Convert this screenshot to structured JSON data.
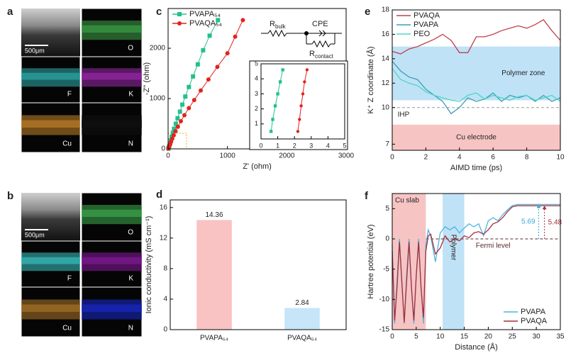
{
  "panel_labels": [
    "a",
    "b",
    "c",
    "d",
    "e",
    "f"
  ],
  "images": [
    {
      "scale_bar": "500μm",
      "elements": [
        "O",
        "F",
        "K",
        "Cu",
        "N"
      ],
      "colors": [
        "#3fa64a",
        "#2fb3b0",
        "#a02ab0",
        "#c8862a",
        "#111111"
      ]
    },
    {
      "scale_bar": "500μm",
      "elements": [
        "O",
        "F",
        "K",
        "Cu",
        "N"
      ],
      "colors": [
        "#3fb050",
        "#3cc8c8",
        "#8a1aa0",
        "#b07a2a",
        "#1a2ad0"
      ]
    }
  ],
  "circuit": {
    "r_bulk": {
      "text": "R",
      "sub": "bulk"
    },
    "cpe": "CPE",
    "r_contact": {
      "text": "R",
      "sub": "contact"
    }
  },
  "chart_data": [
    {
      "type": "line",
      "markers": true,
      "xlabel": "Z' (ohm)",
      "ylabel": "-Z'' (ohm)",
      "xlim": [
        0,
        3000
      ],
      "xticks": [
        0,
        1000,
        2000,
        3000
      ],
      "ylim": [
        0,
        2790
      ],
      "yticks": [
        0,
        1000,
        2000
      ],
      "legend": "top-left",
      "series": [
        {
          "name": "PVAPA₅₄",
          "color": "#23c08b",
          "marker": "square",
          "x": [
            5,
            10,
            20,
            30,
            45,
            60,
            80,
            100,
            130,
            160,
            200,
            240,
            290,
            350,
            420,
            500,
            590,
            700,
            840
          ],
          "values": [
            5,
            25,
            60,
            110,
            170,
            240,
            320,
            400,
            500,
            610,
            740,
            880,
            1040,
            1230,
            1440,
            1680,
            1960,
            2250,
            2560
          ]
        },
        {
          "name": "PVAQA₅₄",
          "color": "#e3221e",
          "marker": "circle",
          "x": [
            5,
            10,
            20,
            35,
            50,
            70,
            95,
            125,
            165,
            215,
            275,
            350,
            440,
            550,
            680,
            830,
            1000,
            1130,
            1260
          ],
          "values": [
            5,
            20,
            50,
            90,
            140,
            200,
            270,
            350,
            440,
            550,
            670,
            810,
            970,
            1160,
            1380,
            1630,
            1900,
            2230,
            2560
          ]
        }
      ]
    },
    {
      "type": "line",
      "markers": true,
      "xlim": [
        0,
        5
      ],
      "xticks": [
        0,
        1,
        2,
        3,
        4,
        5
      ],
      "ylim": [
        0,
        5
      ],
      "yticks": [
        1,
        2,
        3,
        4,
        5
      ],
      "series": [
        {
          "color": "#23c08b",
          "marker": "square",
          "x": [
            0.6,
            0.7,
            0.85,
            1.0,
            1.15,
            1.3
          ],
          "values": [
            0.5,
            1.3,
            2.2,
            3.0,
            3.8,
            4.6
          ]
        },
        {
          "color": "#e3221e",
          "marker": "circle",
          "x": [
            2.2,
            2.3,
            2.4,
            2.5,
            2.6,
            2.75
          ],
          "values": [
            0.5,
            1.3,
            2.2,
            3.0,
            3.8,
            4.6
          ]
        }
      ]
    },
    {
      "type": "bar",
      "ylabel": "Ionic conductivity (mS cm⁻¹)",
      "categories": [
        "PVAPA₅₄",
        "PVAQA₅₄"
      ],
      "values": [
        14.36,
        2.84
      ],
      "colors": [
        "#f9c3c3",
        "#c6e5f8"
      ],
      "ylim": [
        0,
        17
      ],
      "yticks": [
        0,
        4,
        8,
        12,
        16
      ]
    },
    {
      "type": "line",
      "xlabel": "AIMD time (ps)",
      "ylabel": "K⁺ Z coordinate (Å)",
      "xlim": [
        0,
        10
      ],
      "xticks": [
        0,
        2,
        4,
        6,
        8,
        10
      ],
      "ylim": [
        6.5,
        18
      ],
      "yticks": [
        7,
        10,
        12,
        14,
        16,
        18
      ],
      "legend": "top-left",
      "bands": [
        {
          "label": "Polymer zone",
          "y": [
            10.6,
            15
          ],
          "color": "#bfe2f6"
        },
        {
          "label": "Cu electrode",
          "y": [
            6.5,
            8.6
          ],
          "color": "#f7c4c4"
        }
      ],
      "hlines": [
        {
          "label": "IHP",
          "value": 10,
          "color": "#999999"
        }
      ],
      "x": [
        0,
        0.5,
        1,
        1.5,
        2,
        2.5,
        3,
        3.5,
        4,
        4.5,
        5,
        5.5,
        6,
        6.5,
        7,
        7.5,
        8,
        8.5,
        9,
        9.5,
        10
      ],
      "series": [
        {
          "name": "PVAQA",
          "color": "#c0404a",
          "values": [
            14.6,
            14.4,
            14.8,
            15.0,
            15.3,
            15.6,
            16.0,
            15.5,
            14.5,
            14.5,
            15.8,
            15.8,
            16.0,
            16.3,
            16.5,
            16.7,
            16.5,
            16.8,
            17.2,
            16.3,
            15.5
          ]
        },
        {
          "name": "PVAPA",
          "color": "#3aa0b8",
          "values": [
            13.8,
            13.0,
            12.5,
            12.3,
            11.5,
            11.0,
            10.5,
            9.5,
            10.0,
            10.8,
            10.5,
            10.7,
            11.2,
            10.5,
            11.0,
            10.8,
            11.0,
            10.5,
            11.0,
            10.5,
            10.8
          ]
        },
        {
          "name": "PEO",
          "color": "#4fd6c0",
          "values": [
            13.2,
            12.3,
            12.0,
            11.8,
            11.3,
            11.0,
            10.8,
            10.6,
            10.5,
            11.0,
            11.2,
            10.7,
            11.0,
            10.8,
            10.6,
            10.9,
            11.0,
            10.6,
            10.8,
            11.0,
            10.5
          ]
        }
      ]
    },
    {
      "type": "line",
      "xlabel": "Distance (Å)",
      "ylabel": "Hartree potential (eV)",
      "xlim": [
        0,
        35
      ],
      "xticks": [
        0,
        5,
        10,
        15,
        20,
        25,
        30,
        35
      ],
      "ylim": [
        -15,
        7.5
      ],
      "yticks": [
        -15,
        -10,
        -5,
        0,
        5
      ],
      "legend": "bottom-right",
      "bands": [
        {
          "label": "Cu slab",
          "x": [
            0,
            7
          ],
          "color": "#f7c4c4"
        },
        {
          "label": "Polymer",
          "x": [
            10.5,
            15
          ],
          "color": "#bfe2f6"
        }
      ],
      "hlines": [
        {
          "label": "Fermi level",
          "value": 0,
          "color": "#5a2a2a"
        }
      ],
      "arrows": [
        {
          "x": 30.5,
          "value": 5.69,
          "color": "#3aa8d8"
        },
        {
          "x": 31.7,
          "value": 5.48,
          "color": "#a3303c"
        }
      ],
      "x": [
        0,
        0.5,
        1,
        1.5,
        2,
        2.5,
        3,
        3.5,
        4,
        4.5,
        5,
        5.5,
        6,
        6.5,
        7,
        7.5,
        8,
        9,
        10,
        11,
        12,
        13,
        14,
        15,
        16,
        17,
        18,
        19,
        20,
        21,
        22,
        23,
        24,
        25,
        26,
        27,
        28,
        29,
        30,
        31,
        32,
        33,
        34,
        35
      ],
      "series": [
        {
          "name": "PVAPA",
          "color": "#4db3e0",
          "values": [
            -1,
            -14,
            -7,
            0,
            -7,
            -14,
            -6,
            0,
            -8,
            -14,
            -6,
            0,
            -8,
            -14,
            -1,
            1.5,
            0.5,
            -3.8,
            1,
            2,
            1.5,
            2,
            1,
            1.8,
            2.5,
            2,
            2.5,
            0.5,
            3,
            3.5,
            3,
            4,
            4.8,
            5.5,
            5.69,
            5.69,
            5.69,
            5.69,
            5.69,
            5.69,
            5.69,
            5.69,
            5.69,
            5.69
          ]
        },
        {
          "name": "PVAQA",
          "color": "#a3303c",
          "values": [
            -2,
            -13.5,
            -8,
            -0.5,
            -7,
            -13.8,
            -7,
            -0.5,
            -8,
            -13.5,
            -6,
            -0.5,
            -8,
            -13,
            -2,
            0.5,
            0.8,
            -2.5,
            -1.5,
            0.5,
            -0.5,
            0,
            -0.3,
            0.5,
            0.2,
            1,
            1.2,
            0.8,
            1.5,
            2.5,
            2.8,
            3.5,
            4.5,
            5.3,
            5.48,
            5.48,
            5.48,
            5.48,
            5.48,
            5.48,
            5.48,
            5.48,
            5.48,
            5.48
          ]
        }
      ]
    }
  ]
}
